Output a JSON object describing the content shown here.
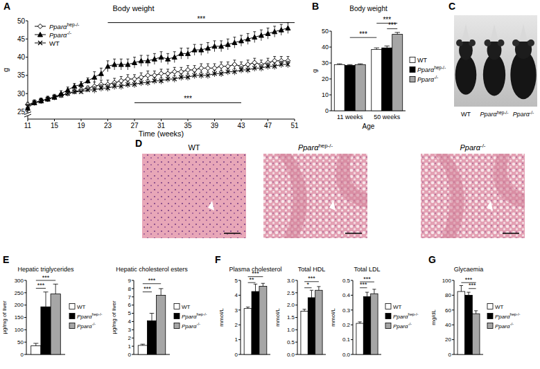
{
  "chart_data": [
    {
      "type": "line",
      "panel": "A",
      "title": "Body weight",
      "y_label": "g",
      "x_label": "Time (weeks)",
      "x": [
        11,
        12,
        13,
        14,
        15,
        16,
        17,
        18,
        19,
        20,
        21,
        22,
        23,
        24,
        25,
        26,
        27,
        28,
        29,
        30,
        31,
        32,
        33,
        34,
        35,
        36,
        37,
        38,
        39,
        40,
        41,
        42,
        43,
        44,
        45,
        46,
        47,
        48,
        49,
        50
      ],
      "xlim": [
        11,
        51
      ],
      "xticks": [
        11,
        15,
        19,
        23,
        27,
        31,
        35,
        39,
        43,
        47,
        51
      ],
      "ylim": [
        23,
        50
      ],
      "yticks": [
        25,
        30,
        35,
        40,
        45,
        50
      ],
      "legend": "top-left",
      "series": [
        {
          "name": "Pparαhep-/-",
          "color": "#000000",
          "marker": "diamond",
          "line_style": "solid",
          "values": [
            27,
            27.5,
            28,
            28.5,
            29,
            29.5,
            30,
            30.5,
            31,
            31.5,
            32,
            32.5,
            32.5,
            33,
            33.5,
            34,
            34,
            34.5,
            35,
            35,
            35.5,
            35.5,
            36,
            36,
            36.5,
            36.5,
            37,
            37,
            37,
            37.5,
            37.5,
            38,
            37.5,
            38,
            38.5,
            38,
            38.5,
            39,
            39,
            39
          ],
          "errors": [
            0.6,
            0.6,
            0.6,
            0.6,
            0.6,
            0.6,
            0.6,
            0.6,
            0.6,
            0.6,
            1.2,
            1.2,
            1.2,
            1.2,
            1.2,
            1.2,
            1.2,
            1.2,
            1.2,
            1.2,
            1.2,
            1.2,
            1.2,
            1.2,
            1.2,
            1.2,
            1.2,
            1.2,
            1.2,
            1.2,
            1.2,
            1.2,
            1.2,
            1.2,
            1.2,
            1.2,
            1.2,
            1.2,
            1.2,
            1.2
          ]
        },
        {
          "name": "Pparα-/-",
          "color": "#000000",
          "marker": "triangle",
          "line_style": "solid",
          "values": [
            26,
            27.5,
            28,
            28.5,
            29,
            30,
            31,
            32,
            32.5,
            33.5,
            34.5,
            35.5,
            37.5,
            38,
            38,
            38,
            38.5,
            39,
            39,
            39.5,
            40,
            39.5,
            40,
            41,
            41,
            42,
            42,
            42.5,
            43,
            43,
            43.5,
            44,
            44.5,
            45,
            45.5,
            46,
            46.5,
            47,
            47.5,
            48
          ],
          "errors": [
            0.8,
            0.8,
            0.8,
            0.8,
            0.8,
            0.8,
            0.8,
            0.8,
            0.8,
            0.8,
            1.5,
            1.5,
            1.5,
            1.5,
            1.5,
            1.5,
            1.5,
            1.5,
            1.5,
            1.5,
            1.5,
            1.5,
            1.5,
            1.5,
            1.5,
            1.5,
            1.5,
            1.5,
            1.5,
            1.5,
            1.5,
            1.5,
            1.5,
            1.5,
            1.5,
            1.5,
            1.5,
            1.5,
            1.5,
            1.5
          ]
        },
        {
          "name": "WT",
          "color": "#000000",
          "marker": "x",
          "line_style": "solid",
          "values": [
            26.5,
            27.5,
            28,
            28.5,
            29,
            29.5,
            30,
            30.5,
            30.5,
            31,
            31,
            31.5,
            31.5,
            32,
            32,
            32.5,
            32.5,
            33,
            33,
            33.5,
            33.5,
            34,
            34,
            34.5,
            34.5,
            35,
            35,
            35,
            35.5,
            35.5,
            36,
            36,
            36.5,
            36.5,
            37,
            37,
            37.5,
            37.5,
            38,
            38
          ],
          "errors": [
            0.6,
            0.6,
            0.6,
            0.6,
            0.6,
            0.6,
            0.6,
            0.6,
            0.6,
            0.6,
            0.9,
            0.9,
            0.9,
            0.9,
            0.9,
            0.9,
            0.9,
            0.9,
            0.9,
            0.9,
            0.9,
            0.9,
            0.9,
            0.9,
            0.9,
            0.9,
            0.9,
            0.9,
            0.9,
            0.9,
            0.9,
            0.9,
            0.9,
            0.9,
            0.9,
            0.9,
            0.9,
            0.9,
            0.9,
            0.9
          ]
        }
      ],
      "annotations": [
        {
          "text": "***",
          "x": [
            23,
            51
          ],
          "y": 49.5
        },
        {
          "text": "***",
          "x": [
            27,
            43
          ],
          "y": 27.5
        }
      ]
    },
    {
      "type": "bar",
      "panel": "B",
      "title": "Body weight",
      "y_label": "g",
      "x_label": "Age",
      "categories": [
        "11 weeks",
        "50 weeks"
      ],
      "ylim": [
        0,
        50
      ],
      "yticks": [
        0,
        10,
        20,
        30,
        40,
        50
      ],
      "legend": "right",
      "series": [
        {
          "name": "WT",
          "color": "#ffffff",
          "values": [
            29,
            38.5
          ],
          "errors": [
            0.5,
            1
          ]
        },
        {
          "name": "Pparαhep-/-",
          "color": "#000000",
          "values": [
            28.5,
            39.5
          ],
          "errors": [
            0.5,
            1.2
          ]
        },
        {
          "name": "Pparα-/-",
          "color": "#a6a6a6",
          "values": [
            29,
            48
          ],
          "errors": [
            0.5,
            1.2
          ]
        }
      ],
      "annotations": [
        {
          "text": "***",
          "from": [
            0,
            1
          ],
          "to": [
            1,
            0
          ],
          "y": 46
        },
        {
          "text": "***",
          "from": [
            1,
            0
          ],
          "to": [
            1,
            2
          ],
          "y": 55
        },
        {
          "text": "***",
          "from": [
            1,
            1
          ],
          "to": [
            1,
            2
          ],
          "y": 51.5
        }
      ]
    },
    {
      "type": "bar",
      "panel": "E",
      "title": "Hepatic triglycerides",
      "y_label": "µg/mg of liver",
      "categories": [
        null
      ],
      "ylim": [
        0,
        300
      ],
      "yticks": [
        0,
        50,
        100,
        150,
        200,
        250,
        300
      ],
      "legend": "right",
      "series": [
        {
          "name": "WT",
          "color": "#ffffff",
          "values": [
            35
          ],
          "errors": [
            10
          ]
        },
        {
          "name": "Pparαhep-/-",
          "color": "#000000",
          "values": [
            193
          ],
          "errors": [
            60
          ]
        },
        {
          "name": "Pparα-/-",
          "color": "#a6a6a6",
          "values": [
            245
          ],
          "errors": [
            40
          ]
        }
      ],
      "annotations": [
        {
          "text": "***",
          "from": [
            0,
            0
          ],
          "to": [
            0,
            1
          ],
          "y": 268
        },
        {
          "text": "***",
          "from": [
            0,
            0
          ],
          "to": [
            0,
            2
          ],
          "y": 300
        }
      ]
    },
    {
      "type": "bar",
      "title": "Hepatic cholesterol esters",
      "y_label": "µg/mg of liver",
      "categories": [
        null
      ],
      "ylim": [
        0,
        9
      ],
      "yticks": [
        0,
        1,
        2,
        3,
        4,
        5,
        6,
        7,
        8,
        9
      ],
      "legend": "right",
      "series": [
        {
          "name": "WT",
          "color": "#ffffff",
          "values": [
            1.1
          ],
          "errors": [
            0.15
          ]
        },
        {
          "name": "Pparαhep-/-",
          "color": "#000000",
          "values": [
            4.1
          ],
          "errors": [
            0.9
          ]
        },
        {
          "name": "Pparα-/-",
          "color": "#a6a6a6",
          "values": [
            7.2
          ],
          "errors": [
            0.8
          ]
        }
      ],
      "annotations": [
        {
          "text": "***",
          "from": [
            0,
            0
          ],
          "to": [
            0,
            1
          ],
          "y": 7.6
        },
        {
          "text": "***",
          "from": [
            0,
            0
          ],
          "to": [
            0,
            2
          ],
          "y": 8.6
        }
      ]
    },
    {
      "type": "bar",
      "panel": "F",
      "title": "Plasma cholesterol",
      "y_label": "mmol/L",
      "categories": [
        null
      ],
      "ylim": [
        0,
        5
      ],
      "yticks": [
        0,
        1,
        2,
        3,
        4,
        5
      ],
      "series": [
        {
          "name": "WT",
          "color": "#ffffff",
          "values": [
            3.1
          ],
          "errors": [
            0.1
          ]
        },
        {
          "name": "Pparαhep-/-",
          "color": "#000000",
          "values": [
            4.25
          ],
          "errors": [
            0.5
          ]
        },
        {
          "name": "Pparα-/-",
          "color": "#a6a6a6",
          "values": [
            4.6
          ],
          "errors": [
            0.2
          ]
        }
      ],
      "annotations": [
        {
          "text": "**",
          "from": [
            0,
            0
          ],
          "to": [
            0,
            1
          ],
          "y": 4.85
        },
        {
          "text": "***",
          "from": [
            0,
            0
          ],
          "to": [
            0,
            2
          ],
          "y": 5.25
        }
      ]
    },
    {
      "type": "bar",
      "title": "Total HDL",
      "y_label": "mmol/L",
      "categories": [
        null
      ],
      "ylim": [
        0,
        3
      ],
      "yticks": [
        {
          "value": 0,
          "label": "0.0"
        },
        {
          "value": 0.5,
          "label": "0.5"
        },
        {
          "value": 1,
          "label": "1.0"
        },
        {
          "value": 1.5,
          "label": "1.5"
        },
        {
          "value": 2,
          "label": "2.0"
        },
        {
          "value": 2.5,
          "label": "2.5"
        },
        {
          "value": 3,
          "label": "3.0"
        }
      ],
      "series": [
        {
          "name": "WT",
          "color": "#ffffff",
          "values": [
            1.75
          ],
          "errors": [
            0.08
          ]
        },
        {
          "name": "Pparαhep-/-",
          "color": "#000000",
          "values": [
            2.3
          ],
          "errors": [
            0.3
          ]
        },
        {
          "name": "Pparα-/-",
          "color": "#a6a6a6",
          "values": [
            2.6
          ],
          "errors": [
            0.15
          ]
        }
      ],
      "annotations": [
        {
          "text": "*",
          "from": [
            0,
            0
          ],
          "to": [
            0,
            1
          ],
          "y": 2.7
        },
        {
          "text": "***",
          "from": [
            0,
            0
          ],
          "to": [
            0,
            2
          ],
          "y": 2.95
        }
      ]
    },
    {
      "type": "bar",
      "title": "Total LDL",
      "y_label": "mmol/L",
      "categories": [
        null
      ],
      "ylim": [
        0,
        0.5
      ],
      "yticks": [
        {
          "value": 0,
          "label": "0.0"
        },
        {
          "value": 0.1,
          "label": "0.1"
        },
        {
          "value": 0.2,
          "label": "0.2"
        },
        {
          "value": 0.3,
          "label": "0.3"
        },
        {
          "value": 0.4,
          "label": "0.4"
        },
        {
          "value": 0.5,
          "label": "0.5"
        }
      ],
      "legend": "right",
      "series": [
        {
          "name": "WT",
          "color": "#ffffff",
          "values": [
            0.21
          ],
          "errors": [
            0.01
          ]
        },
        {
          "name": "Pparαhep-/-",
          "color": "#000000",
          "values": [
            0.39
          ],
          "errors": [
            0.03
          ]
        },
        {
          "name": "Pparα-/-",
          "color": "#a6a6a6",
          "values": [
            0.41
          ],
          "errors": [
            0.03
          ]
        }
      ],
      "annotations": [
        {
          "text": "***",
          "from": [
            0,
            0
          ],
          "to": [
            0,
            1
          ],
          "y": 0.45
        },
        {
          "text": "***",
          "from": [
            0,
            0
          ],
          "to": [
            0,
            2
          ],
          "y": 0.49
        }
      ]
    },
    {
      "type": "bar",
      "panel": "G",
      "title": "Glycaemia",
      "y_label": "mg/dL",
      "categories": [
        null
      ],
      "ylim": [
        0,
        100
      ],
      "yticks": [
        0,
        20,
        40,
        60,
        80,
        100
      ],
      "legend": "right",
      "series": [
        {
          "name": "WT",
          "color": "#ffffff",
          "values": [
            85
          ],
          "errors": [
            8
          ]
        },
        {
          "name": "Pparαhep-/-",
          "color": "#000000",
          "values": [
            80
          ],
          "errors": [
            4
          ]
        },
        {
          "name": "Pparα-/-",
          "color": "#a6a6a6",
          "values": [
            55
          ],
          "errors": [
            4
          ]
        }
      ],
      "annotations": [
        {
          "text": "***",
          "from": [
            0,
            0
          ],
          "to": [
            0,
            2
          ],
          "y": 97
        },
        {
          "text": "***",
          "from": [
            0,
            1
          ],
          "to": [
            0,
            2
          ],
          "y": 89
        }
      ]
    }
  ],
  "images": [
    {
      "panel": "C",
      "captions": [
        "WT",
        "Pparαhep-/-",
        "Pparα-/-"
      ]
    },
    {
      "panel": "D",
      "captions": [
        "WT",
        "Pparαhep-/-",
        "Pparα-/-"
      ]
    }
  ]
}
